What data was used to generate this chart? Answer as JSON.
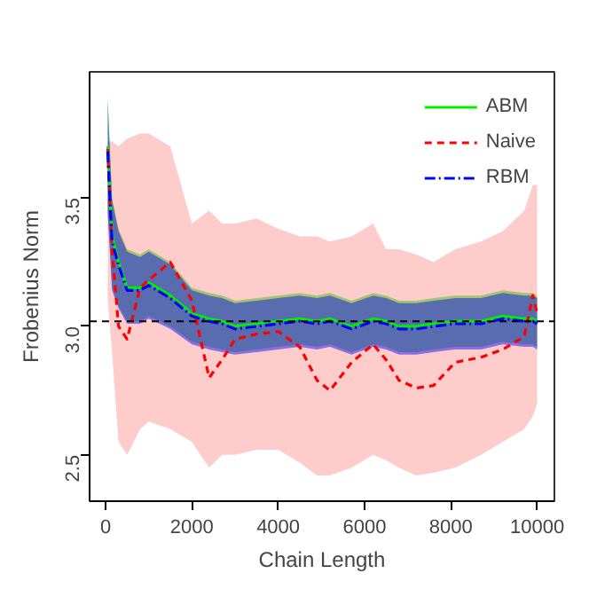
{
  "chart_data": {
    "type": "line",
    "xlabel": "Chain Length",
    "ylabel": "Frobenius Norm",
    "x": [
      50,
      150,
      300,
      500,
      800,
      1000,
      1500,
      2000,
      2400,
      2700,
      3000,
      3500,
      4000,
      4500,
      4900,
      5200,
      5700,
      6200,
      6500,
      6800,
      7200,
      7600,
      8100,
      8700,
      9200,
      9700,
      9900,
      10000
    ],
    "series": [
      {
        "name": "ABM",
        "color": "#00ee00",
        "line_style": "solid",
        "values": [
          3.7,
          3.35,
          3.25,
          3.15,
          3.15,
          3.17,
          3.12,
          3.05,
          3.03,
          3.02,
          3.0,
          3.01,
          3.02,
          3.03,
          3.02,
          3.03,
          3.0,
          3.03,
          3.02,
          3.0,
          3.0,
          3.01,
          3.02,
          3.02,
          3.04,
          3.03,
          3.03,
          3.02
        ],
        "lower": [
          3.45,
          3.15,
          3.08,
          3.02,
          3.02,
          3.04,
          3.0,
          2.94,
          2.92,
          2.91,
          2.9,
          2.91,
          2.92,
          2.93,
          2.92,
          2.93,
          2.9,
          2.93,
          2.92,
          2.9,
          2.9,
          2.91,
          2.92,
          2.92,
          2.94,
          2.93,
          2.93,
          2.92
        ],
        "upper": [
          3.9,
          3.5,
          3.38,
          3.3,
          3.28,
          3.3,
          3.25,
          3.15,
          3.13,
          3.12,
          3.1,
          3.11,
          3.12,
          3.13,
          3.12,
          3.13,
          3.1,
          3.13,
          3.12,
          3.1,
          3.1,
          3.11,
          3.12,
          3.12,
          3.14,
          3.13,
          3.13,
          3.12
        ]
      },
      {
        "name": "Naive",
        "color": "#ff0000",
        "line_style": "dashed",
        "values": [
          3.69,
          3.3,
          3.0,
          2.95,
          3.15,
          3.18,
          3.25,
          3.1,
          2.8,
          2.87,
          2.95,
          2.97,
          2.98,
          2.92,
          2.79,
          2.75,
          2.86,
          2.93,
          2.87,
          2.79,
          2.76,
          2.77,
          2.86,
          2.88,
          2.91,
          2.96,
          3.12,
          3.05
        ],
        "lower": [
          3.1,
          2.9,
          2.55,
          2.5,
          2.6,
          2.63,
          2.6,
          2.55,
          2.45,
          2.5,
          2.5,
          2.52,
          2.52,
          2.47,
          2.42,
          2.42,
          2.45,
          2.5,
          2.48,
          2.45,
          2.42,
          2.43,
          2.45,
          2.5,
          2.55,
          2.6,
          2.65,
          2.7
        ],
        "upper": [
          3.72,
          3.72,
          3.7,
          3.73,
          3.75,
          3.75,
          3.7,
          3.4,
          3.45,
          3.4,
          3.4,
          3.42,
          3.38,
          3.35,
          3.35,
          3.33,
          3.35,
          3.4,
          3.3,
          3.3,
          3.28,
          3.25,
          3.3,
          3.33,
          3.37,
          3.45,
          3.55,
          3.55
        ]
      },
      {
        "name": "RBM",
        "color": "#0000ff",
        "line_style": "dashdot",
        "values": [
          3.68,
          3.33,
          3.24,
          3.14,
          3.14,
          3.16,
          3.11,
          3.04,
          3.02,
          3.01,
          2.99,
          3.0,
          3.01,
          3.02,
          3.01,
          3.02,
          2.99,
          3.02,
          3.01,
          2.99,
          2.99,
          3.0,
          3.01,
          3.01,
          3.03,
          3.02,
          3.02,
          3.01
        ],
        "lower": [
          3.44,
          3.14,
          3.07,
          3.01,
          3.01,
          3.03,
          2.99,
          2.93,
          2.91,
          2.9,
          2.89,
          2.9,
          2.91,
          2.92,
          2.91,
          2.92,
          2.89,
          2.92,
          2.91,
          2.89,
          2.89,
          2.9,
          2.91,
          2.91,
          2.93,
          2.92,
          2.92,
          2.91
        ],
        "upper": [
          3.88,
          3.49,
          3.37,
          3.29,
          3.27,
          3.29,
          3.24,
          3.14,
          3.12,
          3.11,
          3.09,
          3.1,
          3.11,
          3.12,
          3.11,
          3.12,
          3.09,
          3.12,
          3.11,
          3.09,
          3.09,
          3.1,
          3.11,
          3.11,
          3.13,
          3.12,
          3.12,
          3.11
        ]
      }
    ],
    "xlim": [
      -370,
      10400
    ],
    "ylim": [
      2.32,
      3.99
    ],
    "xticks": [
      0,
      2000,
      4000,
      6000,
      8000,
      10000
    ],
    "yticks": [
      {
        "value": 2.5,
        "label": "2.5"
      },
      {
        "value": 3,
        "label": "3.0"
      },
      {
        "value": 3.5,
        "label": "3.5"
      }
    ],
    "ref_lines": [
      {
        "axis": "y",
        "value": 3.02,
        "color": "#000000",
        "line_style": "dashed"
      }
    ],
    "legend": "top right",
    "grid": false
  }
}
